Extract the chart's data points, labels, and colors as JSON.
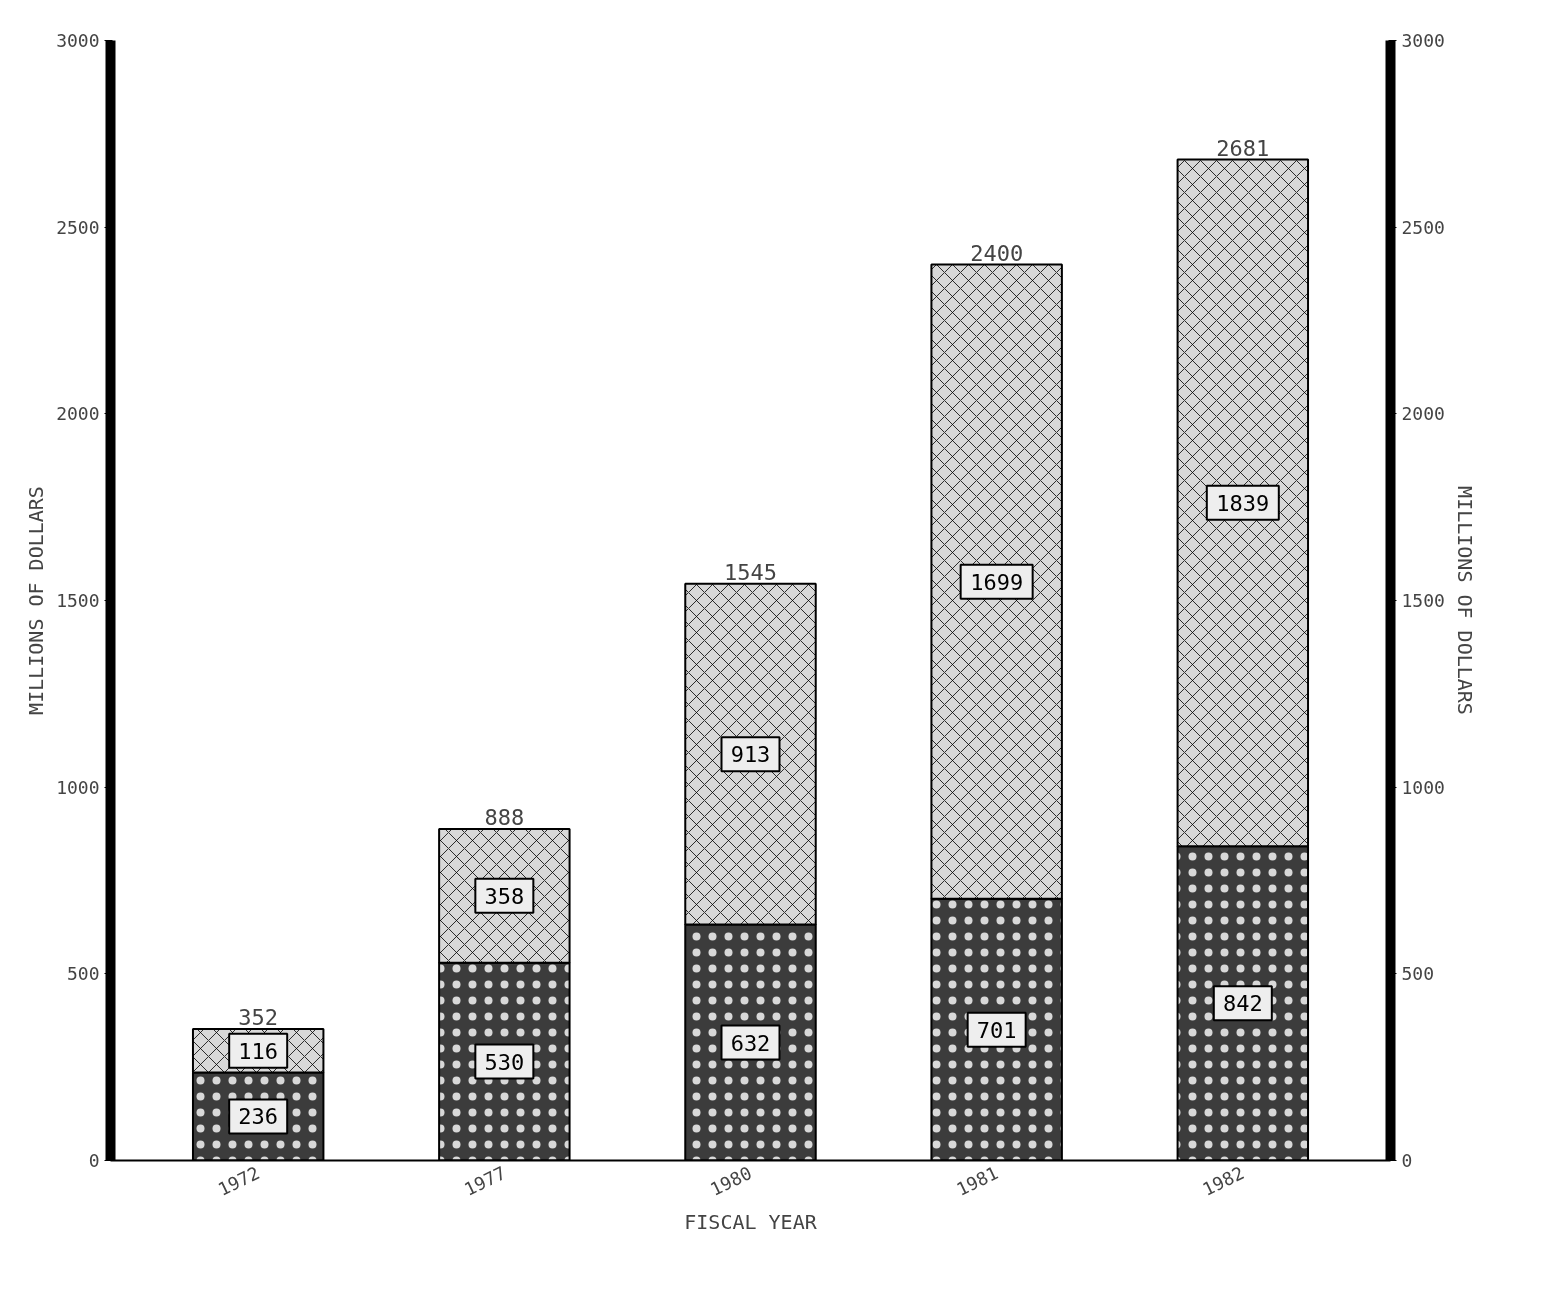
{
  "chart_data": {
    "type": "bar",
    "stacked": true,
    "xlabel": "FISCAL YEAR",
    "ylabel": "MILLIONS OF DOLLARS",
    "y2label": "MILLIONS OF DOLLARS",
    "categories": [
      "1972",
      "1977",
      "1980",
      "1981",
      "1982"
    ],
    "series": [
      {
        "color": "#3c3c3c",
        "values": [
          236,
          530,
          632,
          701,
          842
        ]
      },
      {
        "color": "#d8d8d8",
        "values": [
          116,
          358,
          913,
          1699,
          1839
        ]
      }
    ],
    "totals": [
      "352",
      "888",
      "1545",
      "2400",
      "2681"
    ],
    "data_labels": true,
    "grid": false,
    "ylim": [
      0,
      3000
    ],
    "yticks": [
      0,
      500,
      1000,
      1500,
      2000,
      2500,
      3000
    ],
    "y2lim": [
      0,
      3000
    ],
    "y2ticks": [
      0,
      500,
      1000,
      1500,
      2000,
      2500,
      3000
    ]
  }
}
